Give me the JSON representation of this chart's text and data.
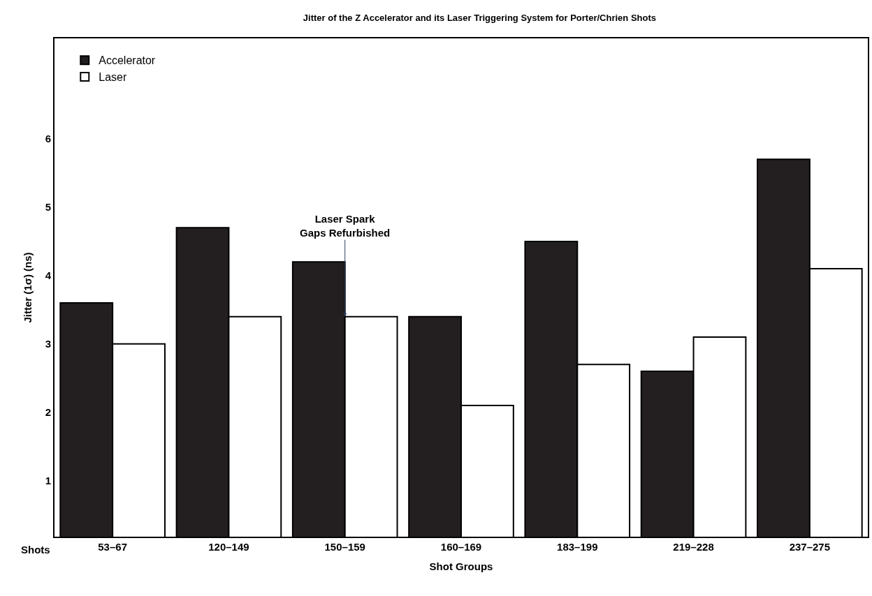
{
  "chart_data": {
    "type": "bar",
    "title": "Jitter of the Z Accelerator and its Laser Triggering System for Porter/Chrien Shots",
    "xlabel": "Shot Groups",
    "ylabel": "Jitter (1σ) (ns)",
    "categories": [
      "53–67",
      "120–149",
      "150–159",
      "160–169",
      "183–199",
      "219–228",
      "237–275"
    ],
    "series": [
      {
        "name": "Accelerator",
        "color": "#231f20",
        "values": [
          3.6,
          4.7,
          4.2,
          3.4,
          4.5,
          2.6,
          5.7
        ]
      },
      {
        "name": "Laser",
        "color": "#ffffff",
        "values": [
          3.0,
          3.4,
          3.4,
          2.1,
          2.7,
          3.1,
          4.1
        ]
      }
    ],
    "ylim": [
      0.18,
      7.47
    ],
    "yticks": [
      1,
      2,
      3,
      4,
      5,
      6
    ],
    "annotations": [
      {
        "text": "Laser Spark\nGaps Refurbished",
        "x": "150–159",
        "y": 3.4
      },
      "Shots"
    ],
    "legend": "top left"
  }
}
